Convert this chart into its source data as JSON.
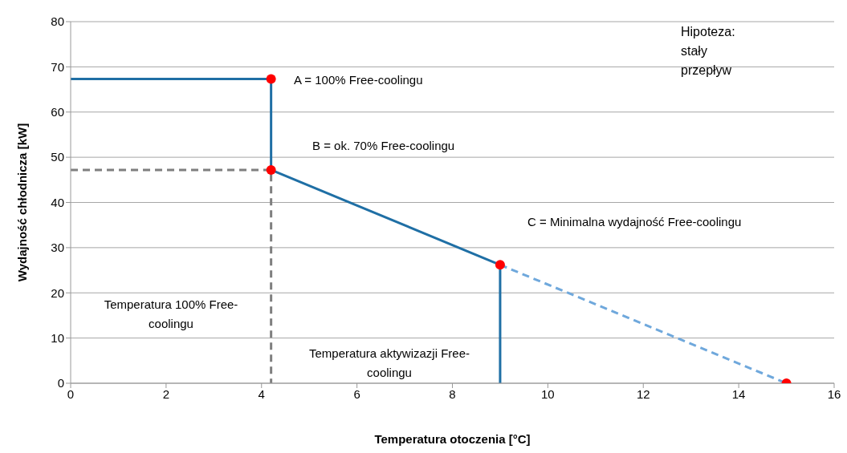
{
  "chart_data": {
    "type": "line",
    "xlabel": "Temperatura otoczenia [°C]",
    "ylabel": "Wydajność chłodnicza [kW]",
    "xlim": [
      0,
      16
    ],
    "xticks": [
      0,
      2,
      4,
      6,
      8,
      10,
      12,
      14,
      16
    ],
    "ylim": [
      0,
      80
    ],
    "yticks": [
      0,
      10,
      20,
      30,
      40,
      50,
      60,
      70,
      80
    ],
    "grid": "y",
    "legend": false,
    "marker": "none",
    "series": [
      {
        "color": "#1f6fa5",
        "line_style": "solid",
        "x": [
          0,
          4.2,
          4.2,
          9,
          9
        ],
        "values": [
          67.3,
          67.3,
          47.2,
          26.2,
          0
        ]
      },
      {
        "color": "#6fa8dc",
        "line_style": "dashed",
        "x": [
          9,
          15
        ],
        "values": [
          26.2,
          0
        ]
      },
      {
        "color": "#7f7f7f",
        "line_style": "dashed",
        "x": [
          0,
          4.2,
          4.2
        ],
        "values": [
          47.2,
          47.2,
          0
        ]
      },
      {
        "type": "scatter",
        "color": "#ff0000",
        "marker": "circle",
        "x": [
          4.2,
          4.2,
          9,
          15
        ],
        "values": [
          67.3,
          47.2,
          26.2,
          0
        ]
      }
    ],
    "annotations": [
      "A = 100% Free-coolingu",
      "B = ok. 70% Free-coolingu",
      "C = Minimalna wydajność Free-coolingu",
      "Temperatura 100% Free-coolingu",
      "Temperatura aktywizazji Free-coolingu",
      "Hipoteza: stały przepływ"
    ]
  }
}
